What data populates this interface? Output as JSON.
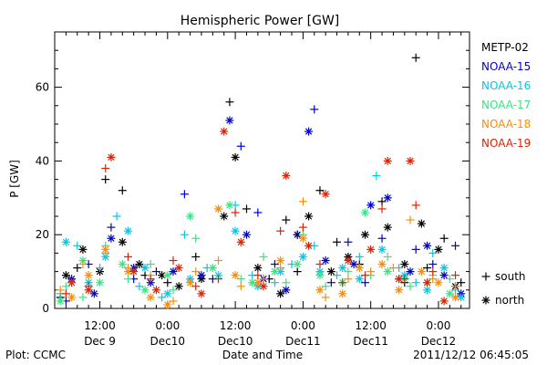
{
  "chart_data": {
    "type": "scatter",
    "title": "Hemispheric Power [GW]",
    "xlabel": "Date and Time",
    "ylabel": "P [GW]",
    "ylim": [
      0,
      75
    ],
    "yticks": [
      0,
      20,
      40,
      60
    ],
    "x_unit": "hours since 2011-12-09 00:00 UT",
    "xlim": [
      4,
      77.5
    ],
    "xticks": [
      {
        "x": 12,
        "line1": "12:00",
        "line2": "Dec 9"
      },
      {
        "x": 24,
        "line1": "0:00",
        "line2": "Dec10"
      },
      {
        "x": 36,
        "line1": "12:00",
        "line2": "Dec10"
      },
      {
        "x": 48,
        "line1": "0:00",
        "line2": "Dec11"
      },
      {
        "x": 60,
        "line1": "12:00",
        "line2": "Dec11"
      },
      {
        "x": 72,
        "line1": "0:00",
        "line2": "Dec12"
      }
    ],
    "legend": {
      "placement": "right",
      "series_names": [
        "METP-02",
        "NOAA-15",
        "NOAA-16",
        "NOAA-17",
        "NOAA-18",
        "NOAA-19"
      ],
      "symbols": [
        {
          "marker": "plus",
          "label": "south"
        },
        {
          "marker": "asterisk",
          "label": "north"
        }
      ]
    },
    "grid": false,
    "series": [
      {
        "name": "METP-02",
        "color": "#000000",
        "south": [
          [
            5,
            3
          ],
          [
            8,
            11
          ],
          [
            13,
            35
          ],
          [
            16,
            32
          ],
          [
            20,
            9
          ],
          [
            24,
            7
          ],
          [
            29,
            14
          ],
          [
            35,
            56
          ],
          [
            38,
            27
          ],
          [
            42,
            8
          ],
          [
            45,
            24
          ],
          [
            47,
            10
          ],
          [
            51,
            32
          ],
          [
            54,
            18
          ],
          [
            58,
            12
          ],
          [
            62,
            29
          ],
          [
            66,
            7
          ],
          [
            68,
            68
          ],
          [
            70,
            11
          ],
          [
            73,
            19
          ],
          [
            76,
            7
          ]
        ],
        "north": [
          [
            6,
            9
          ],
          [
            9,
            16
          ],
          [
            12,
            10
          ],
          [
            16,
            18
          ],
          [
            19,
            12
          ],
          [
            23,
            9
          ],
          [
            26,
            6
          ],
          [
            30,
            8
          ],
          [
            34,
            25
          ],
          [
            36,
            41
          ],
          [
            40,
            11
          ],
          [
            44,
            4
          ],
          [
            47,
            20
          ],
          [
            49,
            25
          ],
          [
            53,
            10
          ],
          [
            56,
            14
          ],
          [
            59,
            20
          ],
          [
            63,
            22
          ],
          [
            66,
            12
          ],
          [
            69,
            23
          ],
          [
            72,
            16
          ],
          [
            75,
            6
          ]
        ]
      },
      {
        "name": "NOAA-15",
        "color": "#0000cc",
        "south": [
          [
            6,
            2
          ],
          [
            10,
            12
          ],
          [
            14,
            22
          ],
          [
            18,
            8
          ],
          [
            22,
            10
          ],
          [
            27,
            31
          ],
          [
            32,
            8
          ],
          [
            37,
            44
          ],
          [
            40,
            26
          ],
          [
            43,
            12
          ],
          [
            47,
            20
          ],
          [
            50,
            54
          ],
          [
            53,
            7
          ],
          [
            56,
            18
          ],
          [
            59,
            7
          ],
          [
            62,
            19
          ],
          [
            65,
            8
          ],
          [
            68,
            16
          ],
          [
            71,
            12
          ],
          [
            75,
            17
          ]
        ],
        "north": [
          [
            7,
            8
          ],
          [
            11,
            4
          ],
          [
            14,
            19
          ],
          [
            18,
            11
          ],
          [
            21,
            7
          ],
          [
            25,
            10
          ],
          [
            30,
            9
          ],
          [
            35,
            51
          ],
          [
            38,
            20
          ],
          [
            41,
            8
          ],
          [
            45,
            5
          ],
          [
            49,
            48
          ],
          [
            52,
            13
          ],
          [
            57,
            12
          ],
          [
            60,
            28
          ],
          [
            63,
            30
          ],
          [
            67,
            10
          ],
          [
            70,
            17
          ],
          [
            73,
            9
          ],
          [
            76,
            4
          ]
        ]
      },
      {
        "name": "NOAA-16",
        "color": "#00c8e6",
        "south": [
          [
            5,
            4
          ],
          [
            8,
            17
          ],
          [
            12,
            11
          ],
          [
            15,
            25
          ],
          [
            19,
            6
          ],
          [
            23,
            3
          ],
          [
            27,
            20
          ],
          [
            31,
            11
          ],
          [
            36,
            28
          ],
          [
            39,
            9
          ],
          [
            43,
            7
          ],
          [
            46,
            12
          ],
          [
            50,
            17
          ],
          [
            54,
            9
          ],
          [
            58,
            14
          ],
          [
            61,
            36
          ],
          [
            65,
            11
          ],
          [
            68,
            7
          ],
          [
            71,
            15
          ],
          [
            75,
            5
          ]
        ],
        "north": [
          [
            6,
            18
          ],
          [
            10,
            7
          ],
          [
            13,
            14
          ],
          [
            17,
            21
          ],
          [
            20,
            11
          ],
          [
            24,
            4
          ],
          [
            28,
            8
          ],
          [
            33,
            9
          ],
          [
            36,
            21
          ],
          [
            40,
            6
          ],
          [
            44,
            10
          ],
          [
            48,
            14
          ],
          [
            51,
            10
          ],
          [
            55,
            11
          ],
          [
            58,
            8
          ],
          [
            62,
            16
          ],
          [
            66,
            9
          ],
          [
            70,
            5
          ],
          [
            73,
            11
          ],
          [
            76,
            3
          ]
        ]
      },
      {
        "name": "NOAA-17",
        "color": "#33e680",
        "south": [
          [
            6,
            6
          ],
          [
            9,
            3
          ],
          [
            13,
            17
          ],
          [
            17,
            8
          ],
          [
            21,
            12
          ],
          [
            25,
            5
          ],
          [
            29,
            19
          ],
          [
            33,
            9
          ],
          [
            37,
            8
          ],
          [
            41,
            14
          ],
          [
            45,
            7
          ],
          [
            48,
            20
          ],
          [
            52,
            6
          ],
          [
            56,
            10
          ],
          [
            60,
            9
          ],
          [
            63,
            14
          ],
          [
            67,
            6
          ],
          [
            71,
            9
          ],
          [
            74,
            8
          ]
        ],
        "north": [
          [
            5,
            2
          ],
          [
            9,
            13
          ],
          [
            12,
            7
          ],
          [
            16,
            12
          ],
          [
            20,
            5
          ],
          [
            24,
            9
          ],
          [
            28,
            25
          ],
          [
            32,
            11
          ],
          [
            35,
            28
          ],
          [
            39,
            7
          ],
          [
            43,
            10
          ],
          [
            47,
            12
          ],
          [
            51,
            9
          ],
          [
            55,
            7
          ],
          [
            59,
            26
          ],
          [
            63,
            10
          ],
          [
            66,
            8
          ],
          [
            70,
            7
          ],
          [
            74,
            4
          ]
        ]
      },
      {
        "name": "NOAA-18",
        "color": "#ff8c00",
        "south": [
          [
            5,
            5
          ],
          [
            9,
            12
          ],
          [
            13,
            15
          ],
          [
            17,
            11
          ],
          [
            21,
            9
          ],
          [
            25,
            2
          ],
          [
            29,
            10
          ],
          [
            33,
            13
          ],
          [
            37,
            6
          ],
          [
            41,
            8
          ],
          [
            44,
            11
          ],
          [
            48,
            29
          ],
          [
            52,
            3
          ],
          [
            56,
            8
          ],
          [
            60,
            10
          ],
          [
            64,
            11
          ],
          [
            67,
            24
          ],
          [
            71,
            8
          ],
          [
            75,
            6
          ]
        ],
        "north": [
          [
            7,
            3
          ],
          [
            10,
            9
          ],
          [
            13,
            16
          ],
          [
            17,
            10
          ],
          [
            21,
            3
          ],
          [
            24,
            1
          ],
          [
            28,
            7
          ],
          [
            33,
            27
          ],
          [
            36,
            9
          ],
          [
            40,
            7
          ],
          [
            44,
            13
          ],
          [
            48,
            19
          ],
          [
            51,
            5
          ],
          [
            55,
            4
          ],
          [
            58,
            11
          ],
          [
            62,
            12
          ],
          [
            65,
            5
          ],
          [
            69,
            10
          ],
          [
            72,
            7
          ],
          [
            75,
            3
          ]
        ]
      },
      {
        "name": "NOAA-19",
        "color": "#e02000",
        "south": [
          [
            6,
            4
          ],
          [
            10,
            6
          ],
          [
            13,
            38
          ],
          [
            17,
            14
          ],
          [
            21,
            8
          ],
          [
            25,
            13
          ],
          [
            29,
            6
          ],
          [
            33,
            8
          ],
          [
            36,
            26
          ],
          [
            40,
            9
          ],
          [
            44,
            21
          ],
          [
            48,
            22
          ],
          [
            51,
            12
          ],
          [
            55,
            7
          ],
          [
            59,
            9
          ],
          [
            62,
            27
          ],
          [
            66,
            8
          ],
          [
            68,
            28
          ],
          [
            71,
            10
          ],
          [
            75,
            9
          ]
        ],
        "north": [
          [
            7,
            7
          ],
          [
            10,
            5
          ],
          [
            14,
            41
          ],
          [
            18,
            10
          ],
          [
            22,
            5
          ],
          [
            26,
            11
          ],
          [
            30,
            4
          ],
          [
            34,
            48
          ],
          [
            37,
            18
          ],
          [
            41,
            6
          ],
          [
            45,
            36
          ],
          [
            49,
            17
          ],
          [
            52,
            31
          ],
          [
            56,
            13
          ],
          [
            60,
            16
          ],
          [
            63,
            40
          ],
          [
            65,
            8
          ],
          [
            67,
            40
          ],
          [
            70,
            7
          ],
          [
            73,
            2
          ]
        ]
      }
    ]
  },
  "footer": {
    "left": "Plot: CCMC",
    "right": "2011/12/12 06:45:05"
  }
}
